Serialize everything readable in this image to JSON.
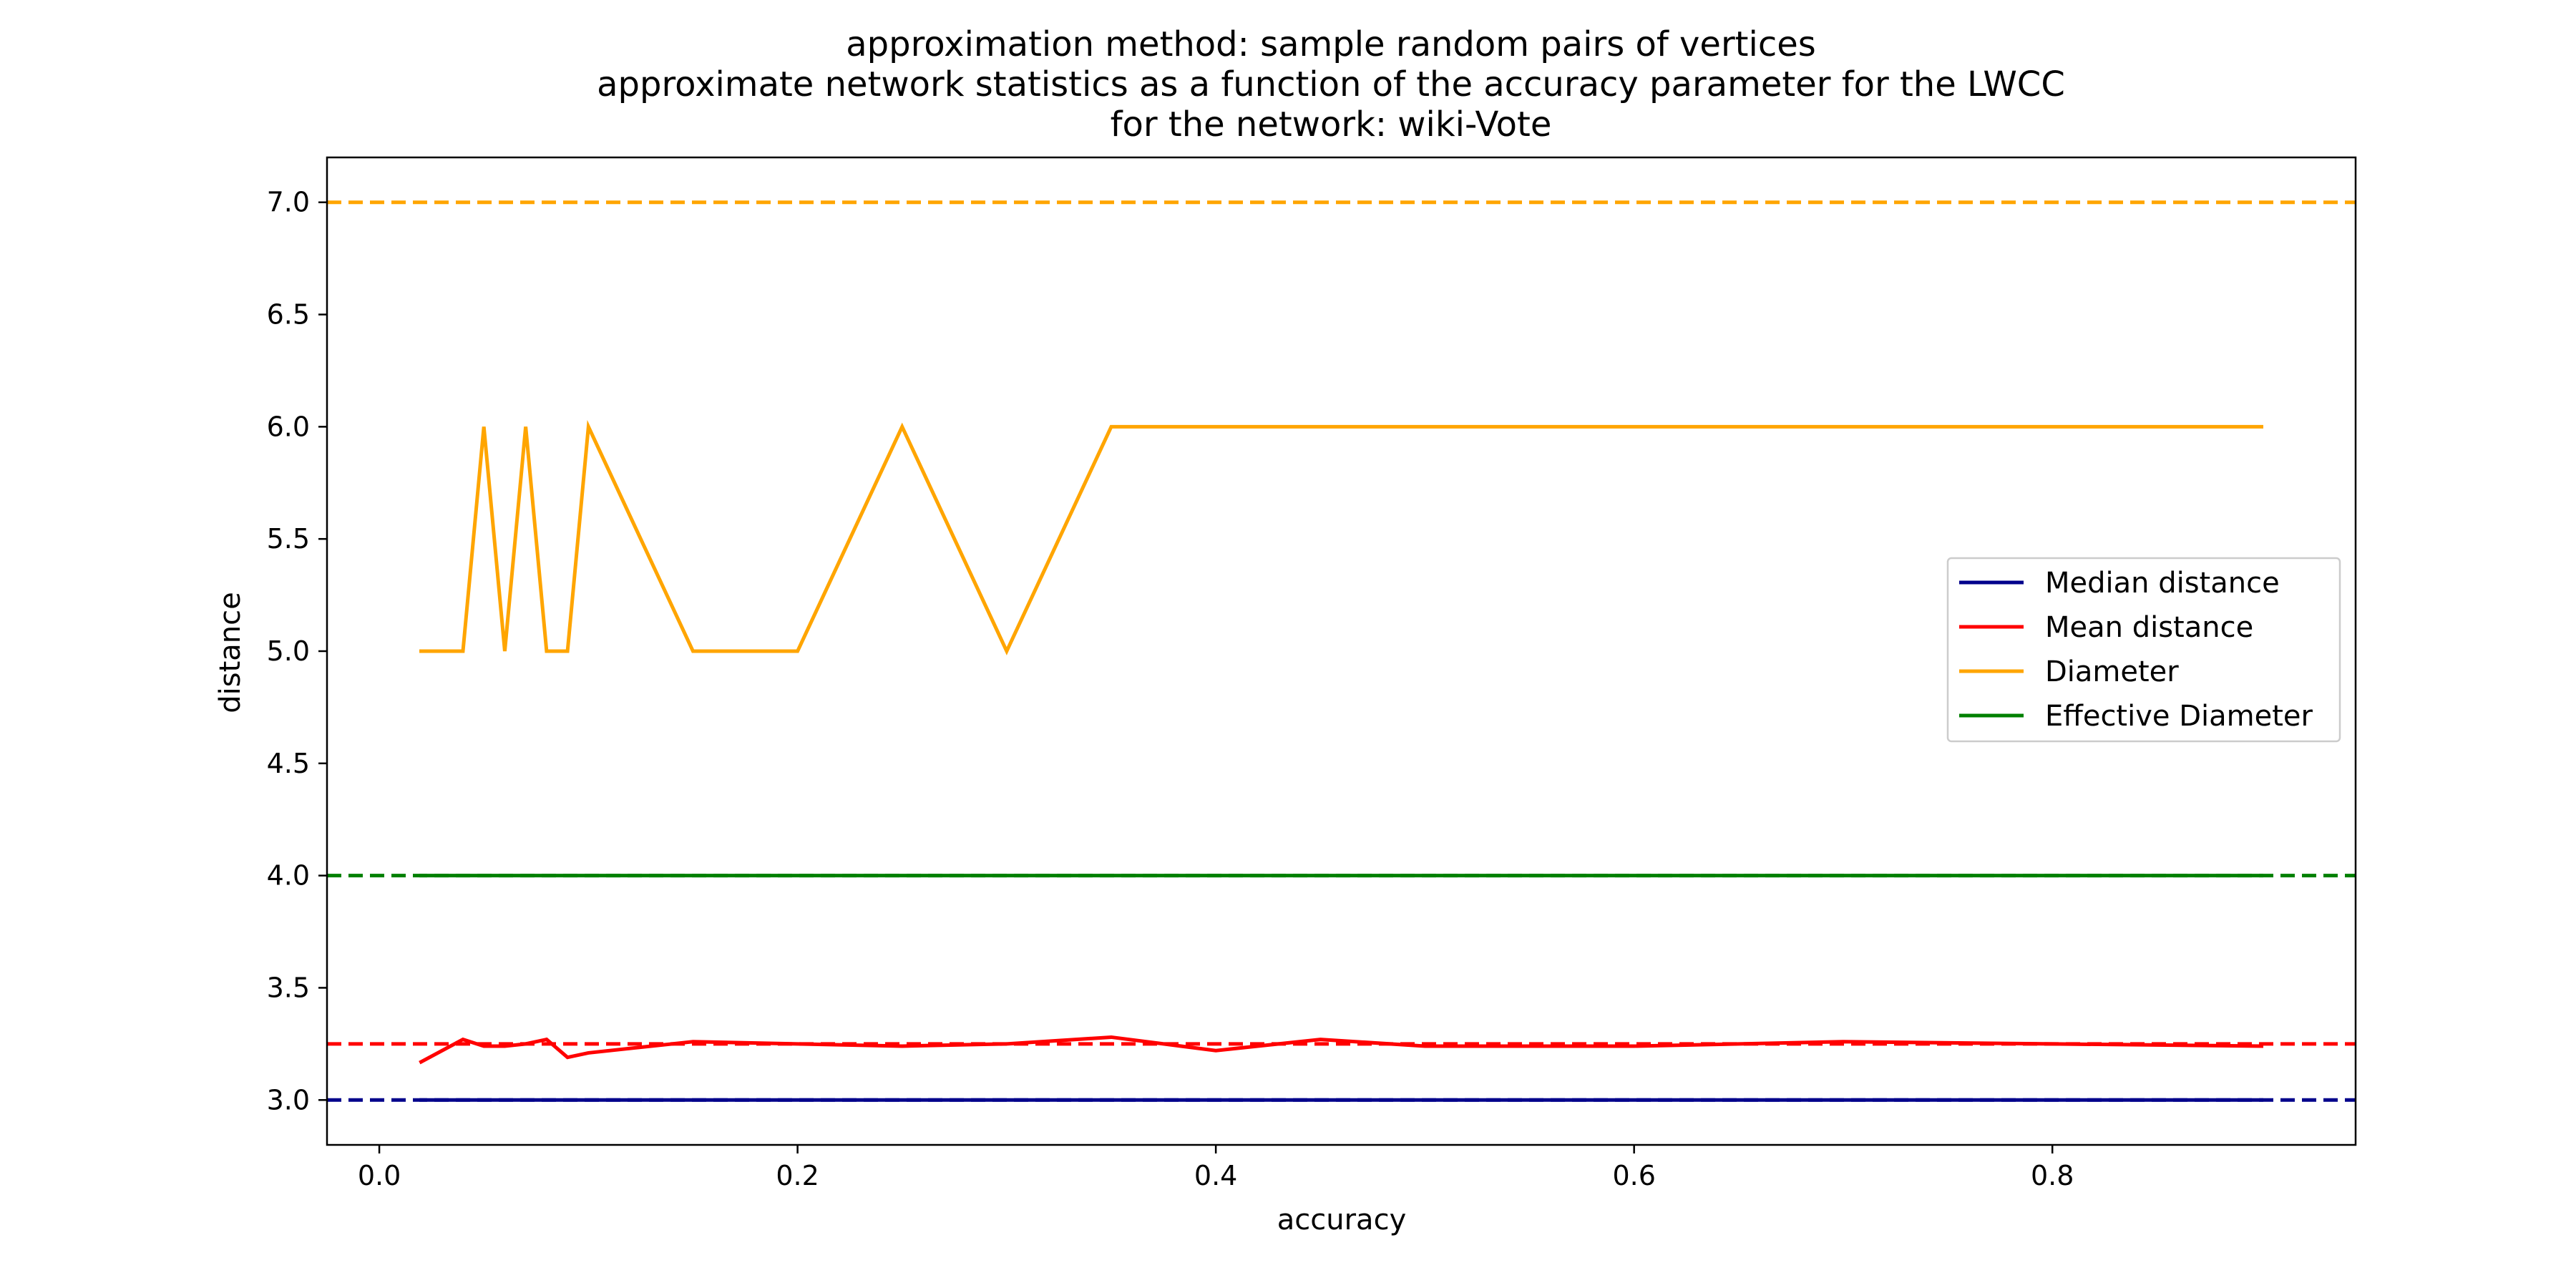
{
  "chart_data": {
    "type": "line",
    "title_lines": [
      "approximation method: sample random pairs of vertices",
      "approximate network statistics as a function of the accuracy parameter for  the LWCC",
      "for the network: wiki-Vote"
    ],
    "xlabel": "accuracy",
    "ylabel": "distance",
    "xlim": [
      -0.025,
      0.945
    ],
    "ylim": [
      2.8,
      7.2
    ],
    "xticks": [
      0.0,
      0.2,
      0.4,
      0.6,
      0.8
    ],
    "xtick_labels": [
      "0.0",
      "0.2",
      "0.4",
      "0.6",
      "0.8"
    ],
    "yticks": [
      3.0,
      3.5,
      4.0,
      4.5,
      5.0,
      5.5,
      6.0,
      6.5,
      7.0
    ],
    "ytick_labels": [
      "3.0",
      "3.5",
      "4.0",
      "4.5",
      "5.0",
      "5.5",
      "6.0",
      "6.5",
      "7.0"
    ],
    "grid": false,
    "legend_position": "center-right",
    "series": [
      {
        "name": "Median distance",
        "color": "#00008b",
        "x": [
          0.02,
          0.9
        ],
        "y": [
          3.0,
          3.0
        ]
      },
      {
        "name": "Mean distance",
        "color": "#ff0000",
        "x": [
          0.02,
          0.04,
          0.05,
          0.06,
          0.07,
          0.08,
          0.09,
          0.1,
          0.15,
          0.2,
          0.25,
          0.3,
          0.35,
          0.4,
          0.45,
          0.5,
          0.6,
          0.7,
          0.8,
          0.9
        ],
        "y": [
          3.17,
          3.27,
          3.24,
          3.24,
          3.25,
          3.27,
          3.19,
          3.21,
          3.26,
          3.25,
          3.24,
          3.25,
          3.28,
          3.22,
          3.27,
          3.24,
          3.24,
          3.26,
          3.25,
          3.24
        ]
      },
      {
        "name": "Diameter",
        "color": "#ffa500",
        "x": [
          0.02,
          0.04,
          0.05,
          0.06,
          0.07,
          0.08,
          0.09,
          0.1,
          0.15,
          0.2,
          0.25,
          0.3,
          0.35,
          0.4,
          0.5,
          0.6,
          0.7,
          0.8,
          0.9
        ],
        "y": [
          5,
          5,
          6,
          5,
          6,
          5,
          5,
          6,
          5,
          5,
          6,
          5,
          6,
          6,
          6,
          6,
          6,
          6,
          6
        ]
      },
      {
        "name": "Effective Diameter",
        "color": "#008000",
        "x": [
          0.02,
          0.9
        ],
        "y": [
          4.0,
          4.0
        ]
      }
    ],
    "reference_lines": [
      {
        "y": 7.0,
        "color": "#ffa500",
        "style": "dashed"
      },
      {
        "y": 4.0,
        "color": "#008000",
        "style": "dashed"
      },
      {
        "y": 3.25,
        "color": "#ff0000",
        "style": "dashed"
      },
      {
        "y": 3.0,
        "color": "#00008b",
        "style": "dashed"
      }
    ]
  }
}
